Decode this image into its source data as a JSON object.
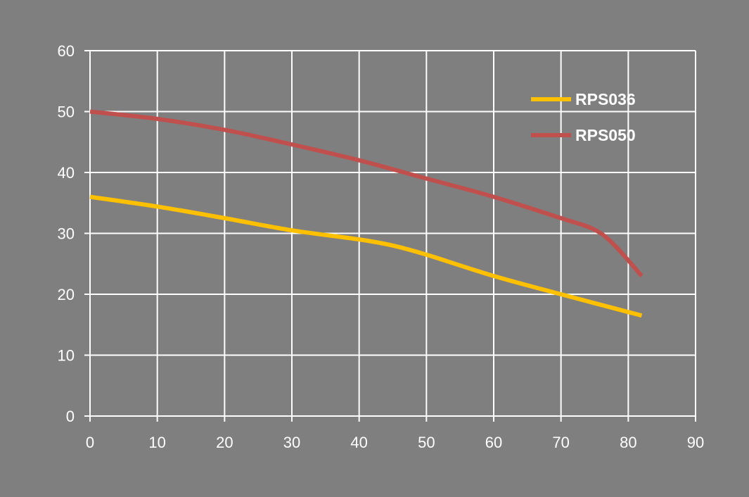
{
  "chart_data": {
    "type": "line",
    "title": "",
    "xlabel": "",
    "ylabel": "",
    "xlim": [
      0,
      90
    ],
    "ylim": [
      0,
      60
    ],
    "x_ticks": [
      0,
      10,
      20,
      30,
      40,
      50,
      60,
      70,
      80,
      90
    ],
    "y_ticks": [
      0,
      10,
      20,
      30,
      40,
      50,
      60
    ],
    "grid": true,
    "legend_position": "top-right",
    "background_color": "#7f7f7f",
    "grid_color": "#ffffff",
    "series": [
      {
        "name": "RPS036",
        "color": "#ffc000",
        "points": [
          [
            0,
            36
          ],
          [
            10,
            34.4
          ],
          [
            20,
            32.5
          ],
          [
            30,
            30.5
          ],
          [
            40,
            29
          ],
          [
            45,
            28
          ],
          [
            50,
            26.5
          ],
          [
            60,
            23
          ],
          [
            70,
            20
          ],
          [
            82,
            16.5
          ]
        ]
      },
      {
        "name": "RPS050",
        "color": "#c0504d",
        "points": [
          [
            0,
            50
          ],
          [
            10,
            48.8
          ],
          [
            20,
            47
          ],
          [
            30,
            44.6
          ],
          [
            40,
            42
          ],
          [
            50,
            39
          ],
          [
            60,
            36
          ],
          [
            70,
            32.5
          ],
          [
            75,
            30.6
          ],
          [
            78,
            28
          ],
          [
            82,
            23
          ]
        ]
      }
    ]
  }
}
